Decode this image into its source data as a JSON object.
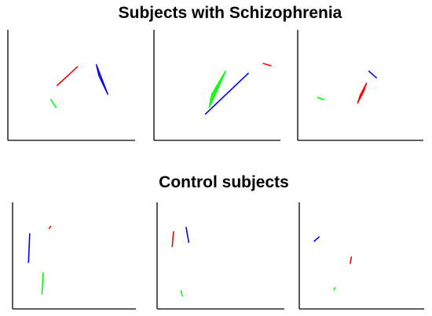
{
  "titles": {
    "schizophrenia": "Subjects with Schizophrenia",
    "control": "Control subjects"
  },
  "colors": {
    "axis": "#000000",
    "red": "#ff0000",
    "green": "#00ff00",
    "blue": "#0000ff",
    "blue_fill": "#3344ee"
  },
  "chart_data": [
    {
      "type": "line",
      "group": "schizophrenia",
      "panel": 1,
      "xlim": [
        0,
        100
      ],
      "ylim": [
        0,
        100
      ],
      "grid": false,
      "shapes": [
        {
          "color": "red",
          "kind": "line",
          "points": [
            [
              39,
              50
            ],
            [
              55,
              67
            ]
          ]
        },
        {
          "color": "green",
          "kind": "line",
          "points": [
            [
              34,
              37
            ],
            [
              38,
              30
            ]
          ]
        },
        {
          "color": "blue",
          "kind": "polygon",
          "points": [
            [
              70,
              69
            ],
            [
              72,
              59
            ],
            [
              79,
              42
            ],
            [
              73,
              60
            ]
          ]
        }
      ]
    },
    {
      "type": "line",
      "group": "schizophrenia",
      "panel": 2,
      "xlim": [
        0,
        100
      ],
      "ylim": [
        0,
        100
      ],
      "grid": false,
      "shapes": [
        {
          "color": "green",
          "kind": "polygon",
          "points": [
            [
              44,
              30
            ],
            [
              52,
              50
            ],
            [
              57,
              63
            ],
            [
              46,
              42
            ]
          ]
        },
        {
          "color": "blue",
          "kind": "line",
          "points": [
            [
              41,
              24
            ],
            [
              75,
              61
            ]
          ]
        },
        {
          "color": "red",
          "kind": "line",
          "points": [
            [
              87,
              70
            ],
            [
              93,
              68
            ]
          ]
        }
      ]
    },
    {
      "type": "line",
      "group": "schizophrenia",
      "panel": 3,
      "xlim": [
        0,
        100
      ],
      "ylim": [
        0,
        100
      ],
      "grid": false,
      "shapes": [
        {
          "color": "blue",
          "kind": "line",
          "points": [
            [
              57,
              63
            ],
            [
              63,
              57
            ]
          ]
        },
        {
          "color": "red",
          "kind": "polygon",
          "points": [
            [
              48,
              34
            ],
            [
              53,
              45
            ],
            [
              55,
              52
            ],
            [
              50,
              41
            ]
          ]
        },
        {
          "color": "green",
          "kind": "line",
          "points": [
            [
              16,
              39
            ],
            [
              21,
              37
            ]
          ]
        }
      ]
    },
    {
      "type": "line",
      "group": "control",
      "panel": 1,
      "xlim": [
        0,
        100
      ],
      "ylim": [
        0,
        100
      ],
      "grid": false,
      "shapes": [
        {
          "color": "blue",
          "kind": "line",
          "points": [
            [
              14,
              71
            ],
            [
              13,
              44
            ]
          ]
        },
        {
          "color": "red",
          "kind": "line",
          "points": [
            [
              30,
              76
            ],
            [
              31,
              78
            ]
          ]
        },
        {
          "color": "green",
          "kind": "line",
          "points": [
            [
              25,
              34
            ],
            [
              24,
              14
            ]
          ]
        }
      ]
    },
    {
      "type": "line",
      "group": "control",
      "panel": 2,
      "xlim": [
        0,
        100
      ],
      "ylim": [
        0,
        100
      ],
      "grid": false,
      "shapes": [
        {
          "color": "red",
          "kind": "line",
          "points": [
            [
              13,
              73
            ],
            [
              12,
              59
            ]
          ]
        },
        {
          "color": "blue",
          "kind": "line",
          "points": [
            [
              23,
              77
            ],
            [
              25,
              63
            ]
          ]
        },
        {
          "color": "green",
          "kind": "line",
          "points": [
            [
              19,
              17
            ],
            [
              20,
              12
            ]
          ]
        }
      ]
    },
    {
      "type": "line",
      "group": "control",
      "panel": 3,
      "xlim": [
        0,
        100
      ],
      "ylim": [
        0,
        100
      ],
      "grid": false,
      "shapes": [
        {
          "color": "blue",
          "kind": "line",
          "points": [
            [
              12,
              64
            ],
            [
              16,
              68
            ]
          ]
        },
        {
          "color": "red",
          "kind": "line",
          "points": [
            [
              41,
              43
            ],
            [
              42,
              49
            ]
          ]
        },
        {
          "color": "green",
          "kind": "line",
          "points": [
            [
              28,
              18
            ],
            [
              29,
              20
            ]
          ]
        }
      ]
    }
  ]
}
